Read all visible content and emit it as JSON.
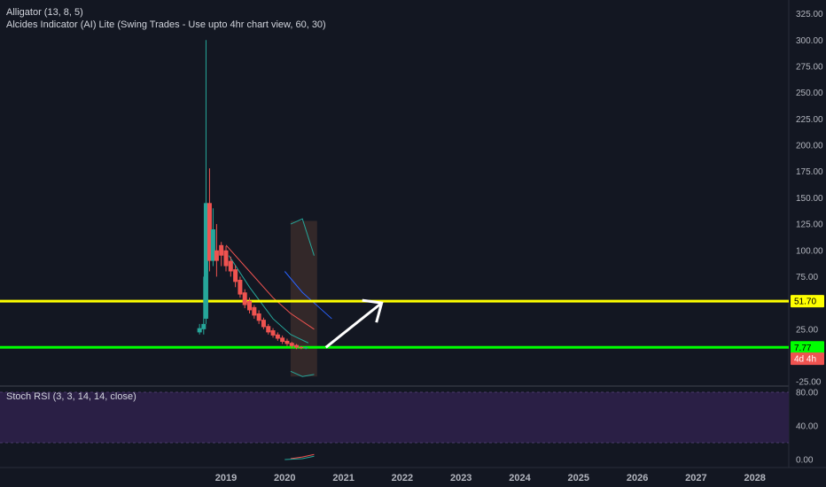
{
  "legend": {
    "line1": "Alligator (13, 8, 5)",
    "line2": "Alcides Indicator (AI) Lite (Swing Trades - Use upto 4hr chart view, 60, 30)",
    "rsi": "Stoch RSI (3, 3, 14, 14, close)"
  },
  "colors": {
    "background": "#131722",
    "up": "#26a69a",
    "down": "#ef5350",
    "yellow": "#ffff00",
    "green": "#00ff00",
    "rsi_band": "#2a1f45"
  },
  "chart_data": {
    "type": "candlestick",
    "price_axis": {
      "ticks": [
        "325.00",
        "300.00",
        "275.00",
        "250.00",
        "225.00",
        "200.00",
        "175.00",
        "150.00",
        "125.00",
        "100.00",
        "75.00",
        "50.00",
        "25.00",
        "-25.00"
      ],
      "ylim": [
        -25,
        330
      ]
    },
    "x_axis": {
      "ticks": [
        "2019",
        "2020",
        "2021",
        "2022",
        "2023",
        "2024",
        "2025",
        "2026",
        "2027",
        "2028"
      ]
    },
    "price_tags": [
      {
        "label": "51.70",
        "value": 51.7,
        "color": "#ffff00",
        "text_color": "#000000"
      },
      {
        "label": "7.77",
        "value": 7.77,
        "color": "#00ff00",
        "text_color": "#000000"
      },
      {
        "label": "4d 4h",
        "value": -3,
        "color": "#ef5350",
        "text_color": "#ffffff"
      }
    ],
    "horizontal_lines": [
      {
        "value": 51.7,
        "color": "#ffff00"
      },
      {
        "value": 7.77,
        "color": "#00ff00"
      }
    ],
    "candles": [
      {
        "t": 2018.55,
        "o": 22,
        "h": 30,
        "l": 20,
        "c": 26
      },
      {
        "t": 2018.62,
        "o": 25,
        "h": 75,
        "l": 20,
        "c": 30
      },
      {
        "t": 2018.66,
        "o": 35,
        "h": 300,
        "l": 30,
        "c": 145
      },
      {
        "t": 2018.72,
        "o": 145,
        "h": 178,
        "l": 80,
        "c": 90
      },
      {
        "t": 2018.78,
        "o": 90,
        "h": 140,
        "l": 85,
        "c": 120
      },
      {
        "t": 2018.84,
        "o": 100,
        "h": 125,
        "l": 75,
        "c": 90
      },
      {
        "t": 2018.92,
        "o": 105,
        "h": 108,
        "l": 85,
        "c": 95
      },
      {
        "t": 2019.0,
        "o": 100,
        "h": 104,
        "l": 80,
        "c": 85
      },
      {
        "t": 2019.08,
        "o": 90,
        "h": 94,
        "l": 75,
        "c": 80
      },
      {
        "t": 2019.16,
        "o": 82,
        "h": 86,
        "l": 65,
        "c": 70
      },
      {
        "t": 2019.24,
        "o": 72,
        "h": 75,
        "l": 55,
        "c": 58
      },
      {
        "t": 2019.32,
        "o": 60,
        "h": 63,
        "l": 45,
        "c": 48
      },
      {
        "t": 2019.4,
        "o": 52,
        "h": 55,
        "l": 40,
        "c": 43
      },
      {
        "t": 2019.48,
        "o": 46,
        "h": 48,
        "l": 35,
        "c": 38
      },
      {
        "t": 2019.56,
        "o": 40,
        "h": 43,
        "l": 30,
        "c": 33
      },
      {
        "t": 2019.64,
        "o": 34,
        "h": 36,
        "l": 25,
        "c": 27
      },
      {
        "t": 2019.72,
        "o": 28,
        "h": 30,
        "l": 20,
        "c": 22
      },
      {
        "t": 2019.8,
        "o": 24,
        "h": 26,
        "l": 17,
        "c": 19
      },
      {
        "t": 2019.88,
        "o": 20,
        "h": 22,
        "l": 14,
        "c": 16
      },
      {
        "t": 2019.96,
        "o": 17,
        "h": 19,
        "l": 11,
        "c": 13
      },
      {
        "t": 2020.04,
        "o": 14,
        "h": 16,
        "l": 9,
        "c": 11
      },
      {
        "t": 2020.12,
        "o": 12,
        "h": 13,
        "l": 7,
        "c": 9
      },
      {
        "t": 2020.2,
        "o": 10,
        "h": 11,
        "l": 6,
        "c": 7.5
      },
      {
        "t": 2020.28,
        "o": 8,
        "h": 9,
        "l": 6,
        "c": 7
      },
      {
        "t": 2020.36,
        "o": 7.5,
        "h": 8.5,
        "l": 6,
        "c": 7.77
      }
    ],
    "alligator": [
      {
        "name": "jaw",
        "color": "#2962ff",
        "points": [
          [
            2020.0,
            80
          ],
          [
            2020.3,
            60
          ],
          [
            2020.6,
            45
          ],
          [
            2020.8,
            35
          ]
        ]
      },
      {
        "name": "teeth",
        "color": "#ef5350",
        "points": [
          [
            2019.0,
            105
          ],
          [
            2019.4,
            80
          ],
          [
            2019.8,
            55
          ],
          [
            2020.1,
            40
          ],
          [
            2020.5,
            25
          ]
        ]
      },
      {
        "name": "lips",
        "color": "#26a69a",
        "points": [
          [
            2019.05,
            95
          ],
          [
            2019.4,
            65
          ],
          [
            2019.8,
            35
          ],
          [
            2020.1,
            20
          ],
          [
            2020.4,
            12
          ]
        ]
      }
    ],
    "rsi_axis": {
      "ticks": [
        "80.00",
        "40.00",
        "0.00"
      ],
      "ylim": [
        -5,
        90
      ]
    },
    "rsi_band": [
      20,
      80
    ]
  }
}
